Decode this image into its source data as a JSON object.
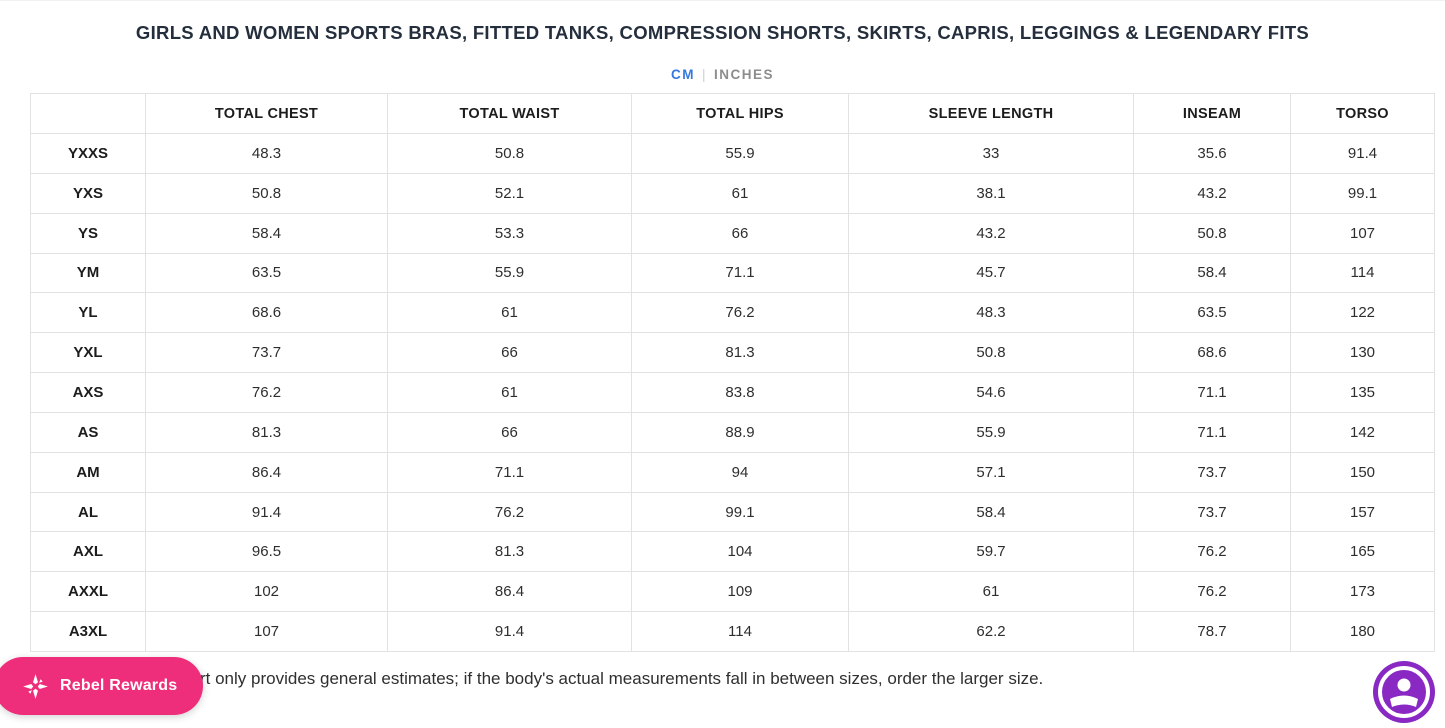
{
  "page": {
    "title": "GIRLS AND WOMEN SPORTS BRAS, FITTED TANKS, COMPRESSION SHORTS, SKIRTS, CAPRIS, LEGGINGS & LEGENDARY FITS"
  },
  "unit_toggle": {
    "cm_label": "CM",
    "separator": "|",
    "inches_label": "INCHES",
    "active_unit": "CM",
    "active_color": "#3678DE",
    "inactive_color": "#8D8D8D"
  },
  "size_table": {
    "headers": [
      "",
      "TOTAL CHEST",
      "TOTAL WAIST",
      "TOTAL HIPS",
      "SLEEVE LENGTH",
      "INSEAM",
      "TORSO"
    ],
    "rows": [
      {
        "size": "YXXS",
        "values": [
          "48.3",
          "50.8",
          "55.9",
          "33",
          "35.6",
          "91.4"
        ]
      },
      {
        "size": "YXS",
        "values": [
          "50.8",
          "52.1",
          "61",
          "38.1",
          "43.2",
          "99.1"
        ]
      },
      {
        "size": "YS",
        "values": [
          "58.4",
          "53.3",
          "66",
          "43.2",
          "50.8",
          "107"
        ]
      },
      {
        "size": "YM",
        "values": [
          "63.5",
          "55.9",
          "71.1",
          "45.7",
          "58.4",
          "114"
        ]
      },
      {
        "size": "YL",
        "values": [
          "68.6",
          "61",
          "76.2",
          "48.3",
          "63.5",
          "122"
        ]
      },
      {
        "size": "YXL",
        "values": [
          "73.7",
          "66",
          "81.3",
          "50.8",
          "68.6",
          "130"
        ]
      },
      {
        "size": "AXS",
        "values": [
          "76.2",
          "61",
          "83.8",
          "54.6",
          "71.1",
          "135"
        ]
      },
      {
        "size": "AS",
        "values": [
          "81.3",
          "66",
          "88.9",
          "55.9",
          "71.1",
          "142"
        ]
      },
      {
        "size": "AM",
        "values": [
          "86.4",
          "71.1",
          "94",
          "57.1",
          "73.7",
          "150"
        ]
      },
      {
        "size": "AL",
        "values": [
          "91.4",
          "76.2",
          "99.1",
          "58.4",
          "73.7",
          "157"
        ]
      },
      {
        "size": "AXL",
        "values": [
          "96.5",
          "81.3",
          "104",
          "59.7",
          "76.2",
          "165"
        ]
      },
      {
        "size": "AXXL",
        "values": [
          "102",
          "86.4",
          "109",
          "61",
          "76.2",
          "173"
        ]
      },
      {
        "size": "A3XL",
        "values": [
          "107",
          "91.4",
          "114",
          "62.2",
          "78.7",
          "180"
        ]
      }
    ]
  },
  "footer": {
    "disclaimer_visible_text": "rt only provides general estimates; if the body's actual measurements fall in between sizes, order the larger size."
  },
  "widgets": {
    "rewards_button_label": "Rebel Rewards",
    "rewards_button_color": "#EF2E7B",
    "rewards_icon": "sparkle-star-icon",
    "accessibility_button_color": "#8928C3",
    "accessibility_icon": "accessibility-person-icon"
  }
}
